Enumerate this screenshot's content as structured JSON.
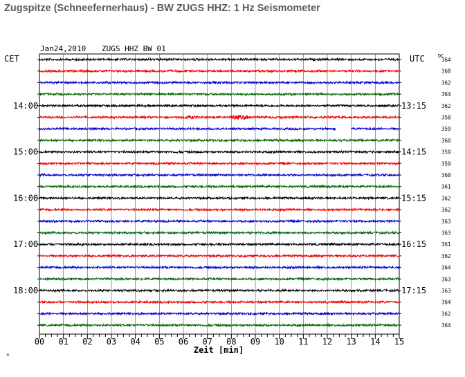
{
  "title": "Zugspitze (Schneefernerhaus) - BW ZUGS HHZ: 1 Hz Seismometer",
  "chart_data": {
    "type": "line",
    "header_date": "Jan24,2010",
    "header_station": "ZUGS HHZ BW 01",
    "left_axis_title": "CET",
    "right_axis_title": "UTC",
    "dc_label": "DC",
    "xlabel": "Zeit [min]",
    "xlim": [
      0,
      15
    ],
    "x_ticks": [
      "00",
      "01",
      "02",
      "03",
      "04",
      "05",
      "06",
      "07",
      "08",
      "09",
      "10",
      "11",
      "12",
      "13",
      "14",
      "15"
    ],
    "trace_minutes": 15,
    "trace_colors": [
      "#000000",
      "#ee0000",
      "#0000cc",
      "#006400"
    ],
    "left_time_labels": [
      "14:00",
      "15:00",
      "16:00",
      "17:00",
      "18:00"
    ],
    "right_time_labels": [
      "13:15",
      "14:15",
      "15:15",
      "16:15",
      "17:15"
    ],
    "time_label_rows": [
      4,
      8,
      12,
      16,
      20
    ],
    "dc_offsets": [
      364,
      368,
      362,
      364,
      362,
      358,
      359,
      360,
      359,
      359,
      360,
      361,
      362,
      362,
      363,
      363,
      361,
      362,
      364,
      363,
      363,
      364,
      362,
      364
    ],
    "events": [
      {
        "row": 5,
        "start_min": 6.0,
        "end_min": 6.6,
        "amplitude": "moderate"
      },
      {
        "row": 5,
        "start_min": 8.0,
        "end_min": 8.7,
        "amplitude": "high"
      },
      {
        "row": 6,
        "start_min": 12.35,
        "end_min": 13.0,
        "amplitude": "data-gap"
      }
    ],
    "grid": true,
    "footnote_mark": "*"
  }
}
